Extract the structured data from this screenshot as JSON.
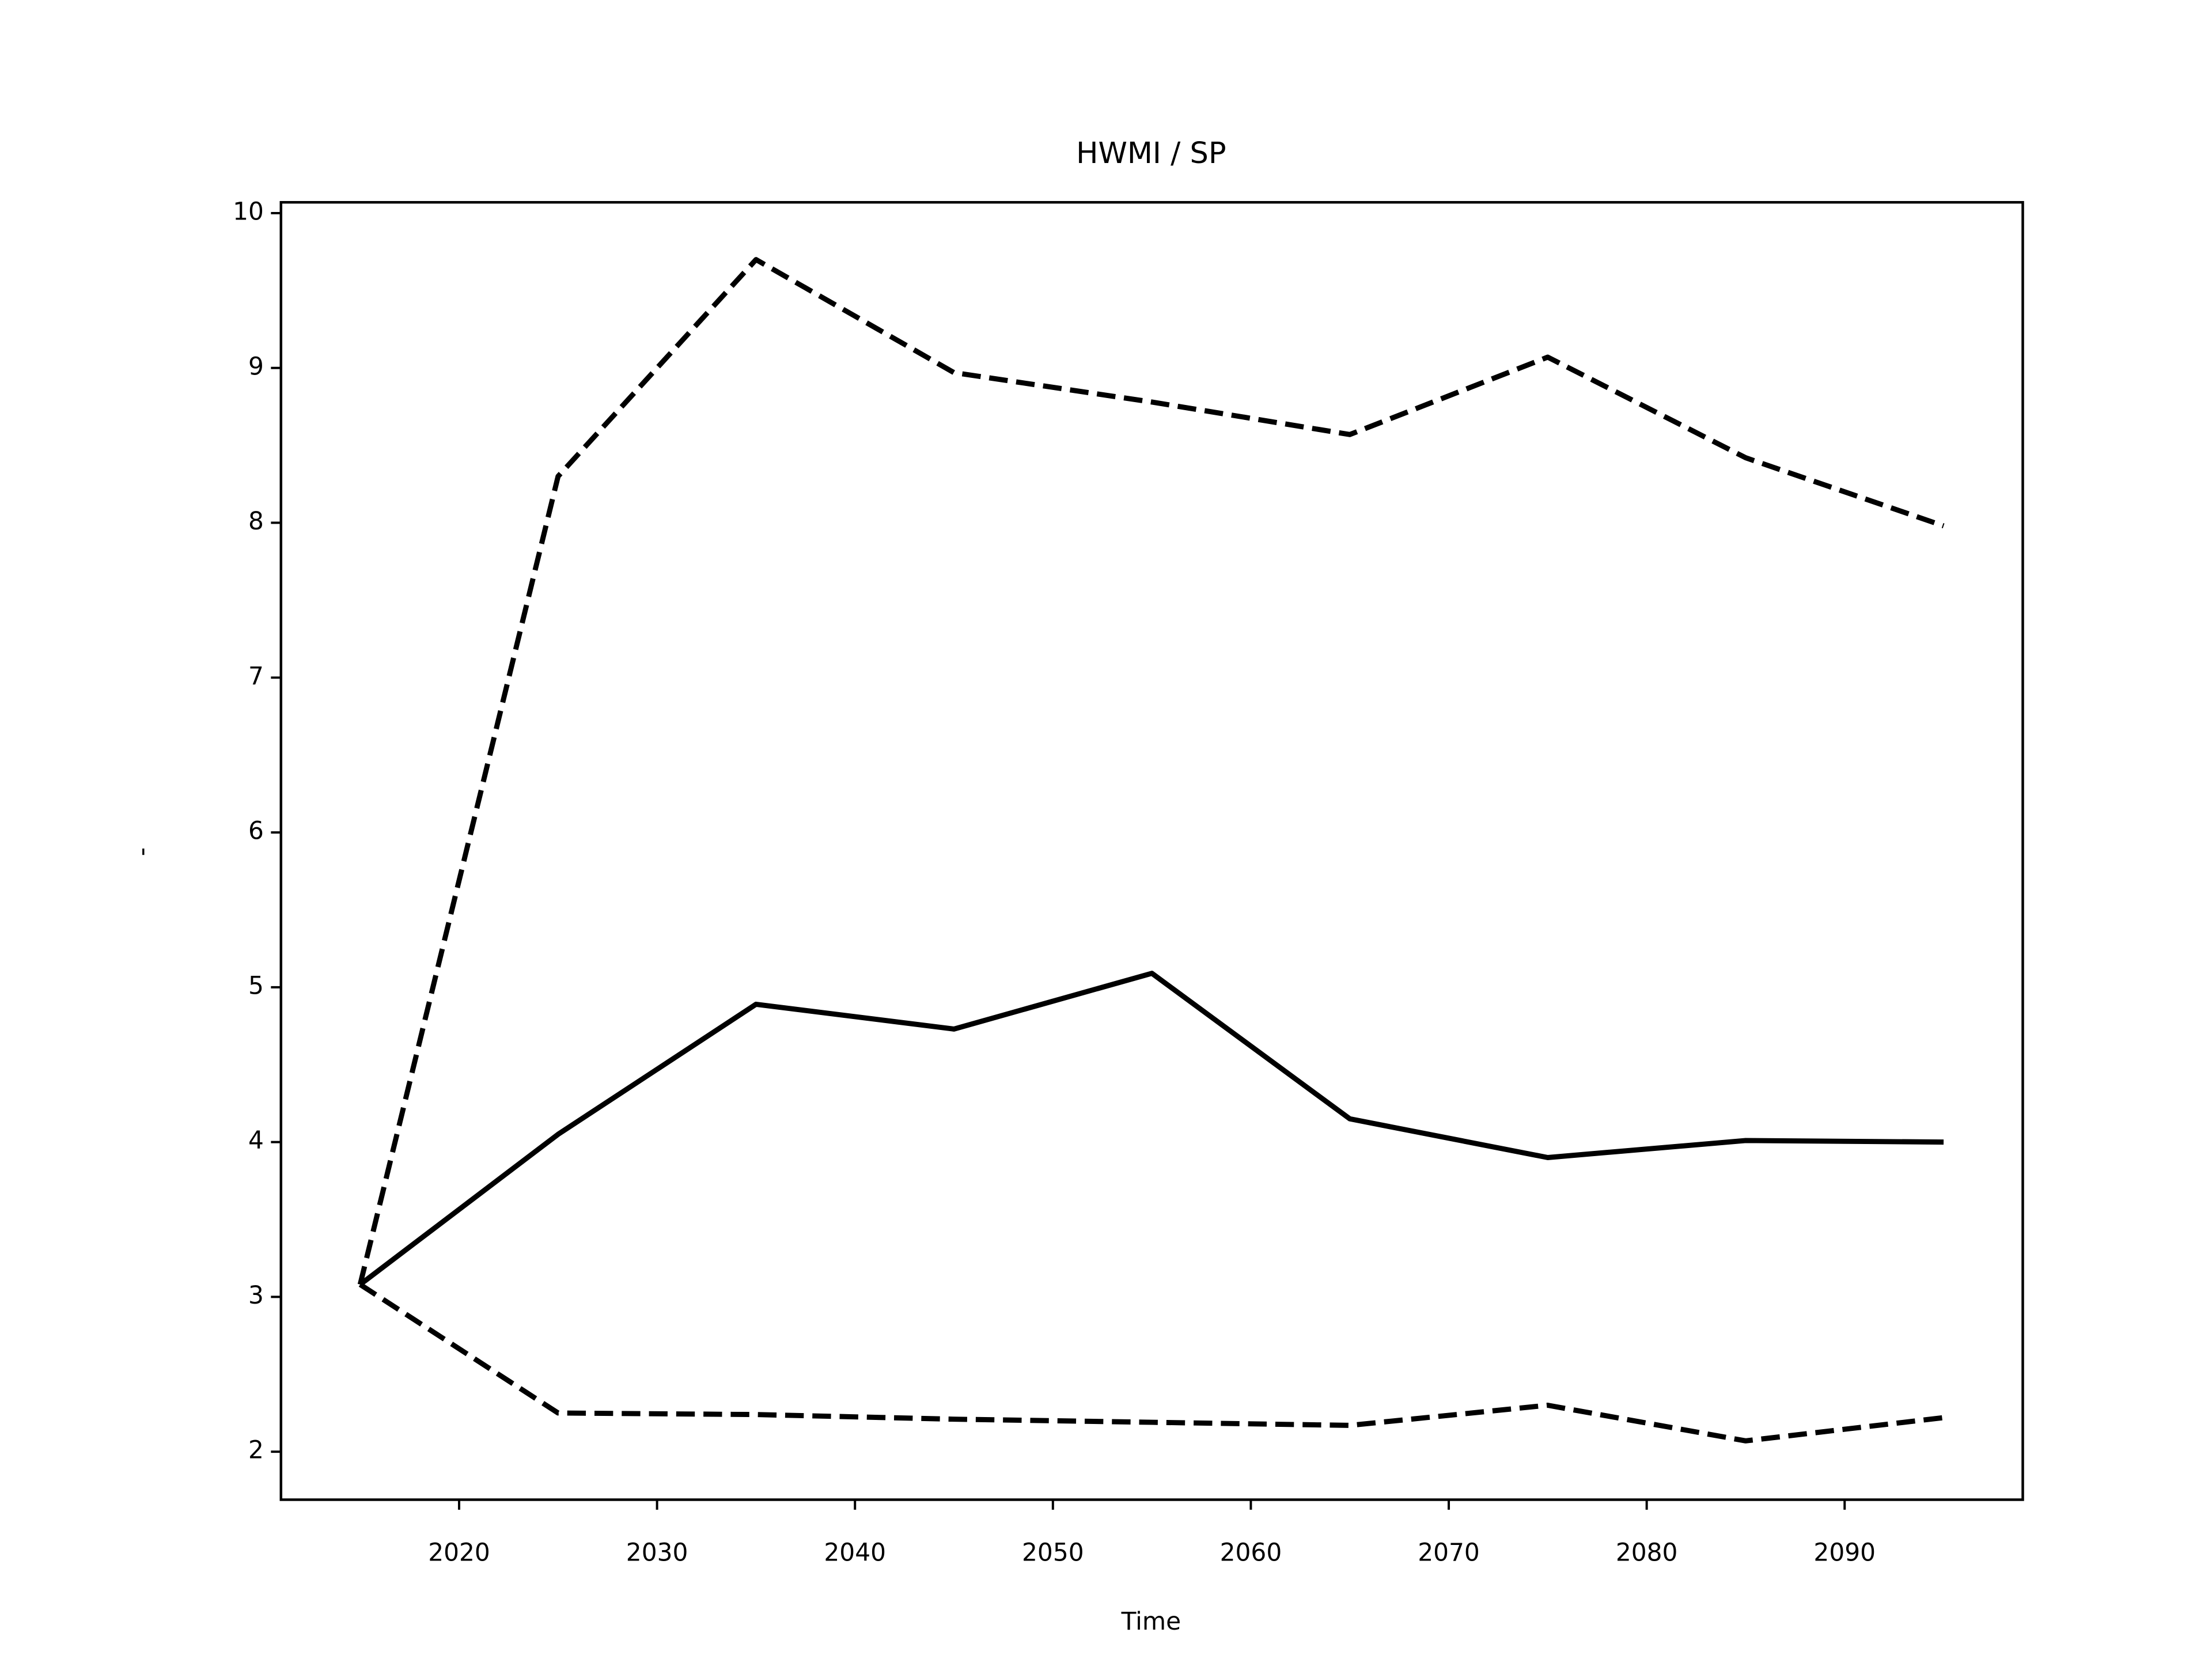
{
  "chart_data": {
    "type": "line",
    "title": "HWMI / SP",
    "xlabel": "Time",
    "ylabel": "-",
    "x": [
      2015,
      2025,
      2035,
      2045,
      2055,
      2065,
      2075,
      2085,
      2095
    ],
    "series": [
      {
        "color": "#000000",
        "linestyle": "solid",
        "values": [
          3.08,
          4.05,
          4.89,
          4.73,
          5.09,
          4.15,
          3.9,
          4.01,
          4.0
        ]
      },
      {
        "color": "#000000",
        "linestyle": "dashed",
        "values": [
          3.08,
          8.3,
          9.7,
          8.97,
          8.78,
          8.57,
          9.07,
          8.42,
          7.98
        ]
      },
      {
        "color": "#000000",
        "linestyle": "dashed",
        "values": [
          3.08,
          2.25,
          2.24,
          2.21,
          2.19,
          2.17,
          2.3,
          2.07,
          2.22
        ]
      }
    ],
    "xlim": [
      2011,
      2099
    ],
    "xticks": [
      2020,
      2030,
      2040,
      2050,
      2060,
      2070,
      2080,
      2090
    ],
    "ylim": [
      1.69,
      10.07
    ],
    "yticks": [
      2,
      3,
      4,
      5,
      6,
      7,
      8,
      9,
      10
    ],
    "grid": false
  }
}
